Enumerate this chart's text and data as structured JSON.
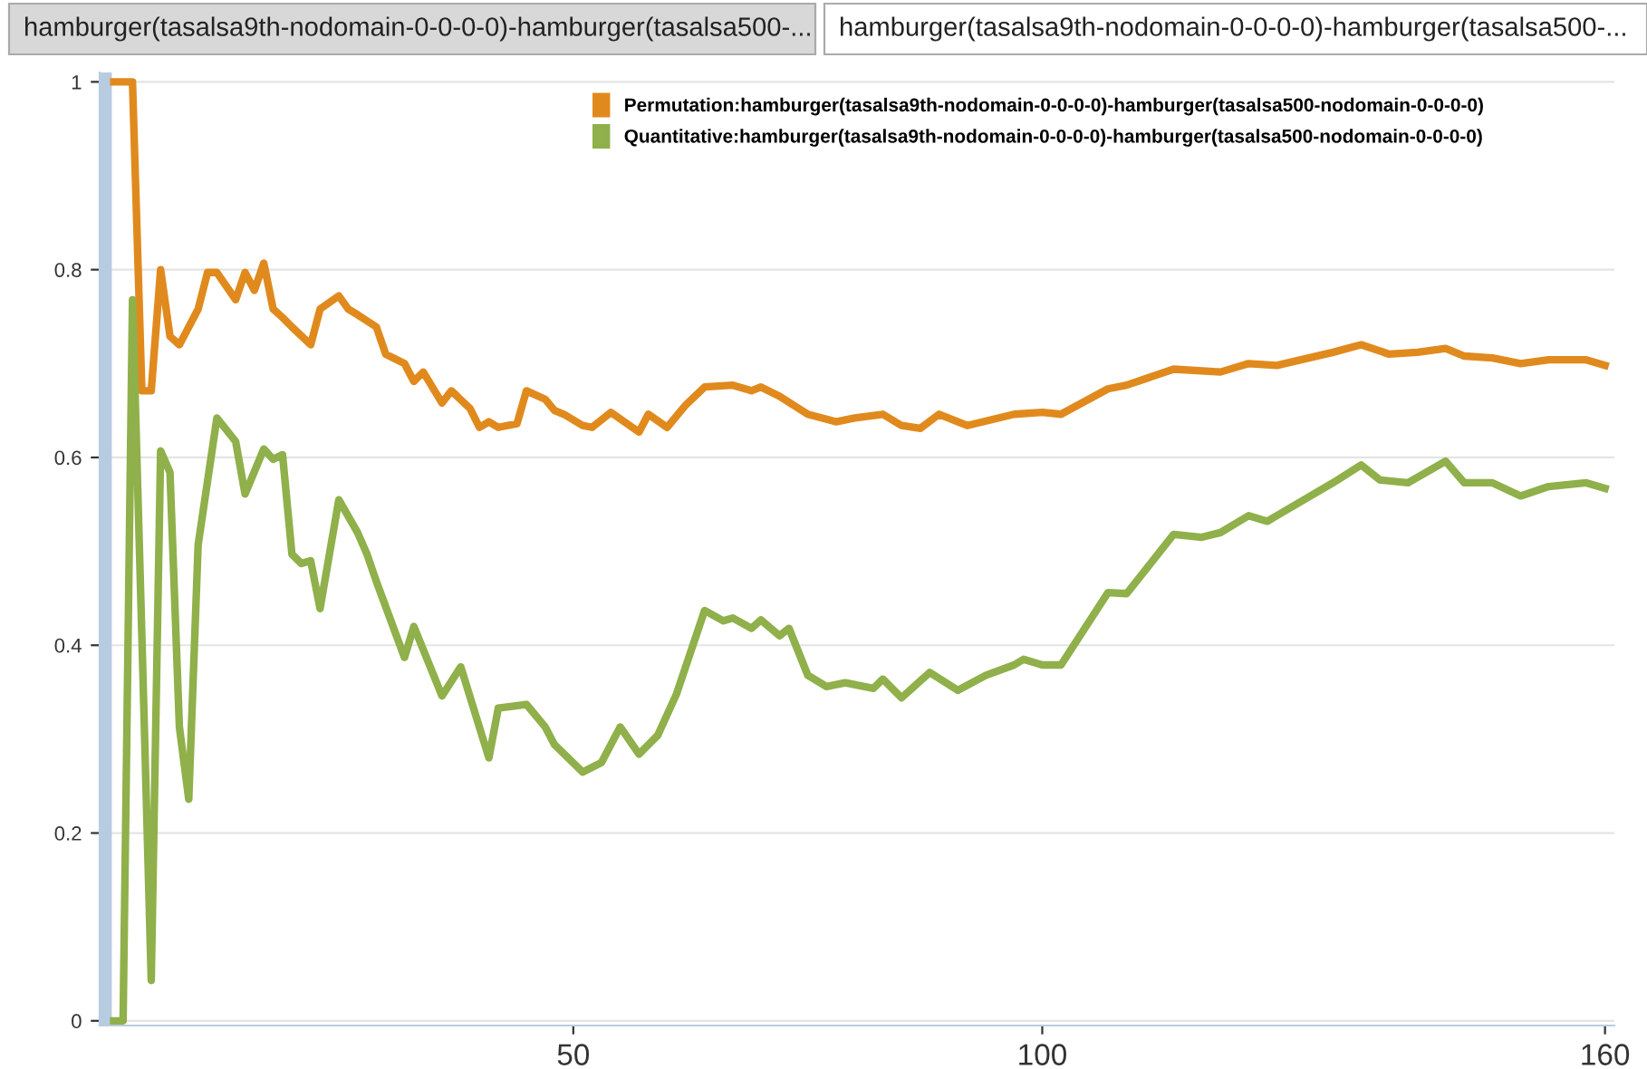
{
  "chart_data": {
    "type": "line",
    "annotations": [
      "hamburger(tasalsa9th-nodomain-0-0-0-0)-hamburger(tasalsa500-...",
      "hamburger(tasalsa9th-nodomain-0-0-0-0)-hamburger(tasalsa500-..."
    ],
    "series": [
      {
        "name": "Permutation:hamburger(tasalsa9th-nodomain-0-0-0-0)-hamburger(tasalsa500-nodomain-0-0-0-0)",
        "color": "#e08a1e",
        "x": [
          1,
          3,
          4,
          5,
          6,
          7,
          8,
          10,
          11,
          12,
          14,
          15,
          16,
          17,
          18,
          19,
          20,
          22,
          23,
          25,
          26,
          27,
          29,
          30,
          32,
          33,
          34,
          36,
          37,
          39,
          40,
          41,
          42,
          44,
          45,
          47,
          48,
          49,
          51,
          52,
          54,
          57,
          58,
          60,
          62,
          64,
          67,
          69,
          70,
          72,
          75,
          78,
          80,
          83,
          85,
          87,
          89,
          92,
          97,
          100,
          102,
          107,
          109,
          114,
          119,
          122,
          125,
          131,
          134,
          137,
          140,
          143,
          145,
          148,
          151,
          154,
          158,
          160
        ],
        "values": [
          1.0,
          1.0,
          0.671,
          0.671,
          0.8,
          0.729,
          0.72,
          0.758,
          0.797,
          0.797,
          0.768,
          0.797,
          0.778,
          0.807,
          0.758,
          0.749,
          0.739,
          0.72,
          0.758,
          0.772,
          0.758,
          0.752,
          0.739,
          0.71,
          0.7,
          0.681,
          0.691,
          0.658,
          0.671,
          0.652,
          0.632,
          0.638,
          0.632,
          0.636,
          0.671,
          0.662,
          0.65,
          0.646,
          0.634,
          0.632,
          0.648,
          0.627,
          0.646,
          0.632,
          0.656,
          0.675,
          0.677,
          0.671,
          0.675,
          0.665,
          0.646,
          0.638,
          0.642,
          0.646,
          0.634,
          0.631,
          0.646,
          0.634,
          0.646,
          0.648,
          0.646,
          0.673,
          0.677,
          0.694,
          0.691,
          0.7,
          0.698,
          0.712,
          0.72,
          0.71,
          0.712,
          0.716,
          0.708,
          0.706,
          0.7,
          0.704,
          0.704,
          0.698
        ]
      },
      {
        "name": "Quantitative:hamburger(tasalsa9th-nodomain-0-0-0-0)-hamburger(tasalsa500-nodomain-0-0-0-0)",
        "color": "#8fb04a",
        "x": [
          1,
          2,
          3,
          4,
          5,
          6,
          7,
          8,
          9,
          10,
          12,
          14,
          15,
          17,
          18,
          19,
          20,
          21,
          22,
          23,
          25,
          27,
          28,
          29,
          32,
          33,
          36,
          38,
          41,
          42,
          45,
          47,
          48,
          51,
          53,
          55,
          57,
          59,
          61,
          64,
          66,
          67,
          69,
          70,
          72,
          73,
          75,
          77,
          79,
          82,
          83,
          85,
          88,
          91,
          94,
          97,
          98,
          100,
          102,
          107,
          109,
          114,
          117,
          119,
          122,
          124,
          125,
          131,
          134,
          136,
          139,
          143,
          145,
          148,
          151,
          154,
          158,
          160
        ],
        "values": [
          0,
          0,
          0.768,
          0.41,
          0.043,
          0.607,
          0.584,
          0.313,
          0.236,
          0.507,
          0.642,
          0.617,
          0.561,
          0.609,
          0.598,
          0.603,
          0.497,
          0.487,
          0.49,
          0.439,
          0.555,
          0.52,
          0.497,
          0.468,
          0.387,
          0.42,
          0.346,
          0.377,
          0.28,
          0.333,
          0.337,
          0.313,
          0.294,
          0.265,
          0.275,
          0.313,
          0.284,
          0.304,
          0.348,
          0.437,
          0.426,
          0.429,
          0.418,
          0.427,
          0.41,
          0.418,
          0.368,
          0.356,
          0.36,
          0.354,
          0.364,
          0.344,
          0.371,
          0.352,
          0.368,
          0.379,
          0.385,
          0.379,
          0.379,
          0.456,
          0.455,
          0.518,
          0.515,
          0.52,
          0.538,
          0.532,
          0.538,
          0.573,
          0.592,
          0.576,
          0.573,
          0.596,
          0.573,
          0.573,
          0.559,
          0.569,
          0.573,
          0.567
        ]
      }
    ],
    "bands": [
      {
        "axis": "x",
        "from": -0.5,
        "to": 0.8,
        "color": "#b8cce0"
      }
    ],
    "xlim": [
      -0.5,
      161
    ],
    "xticks": [
      50,
      100,
      160
    ],
    "ylim": [
      -0.005,
      1.01
    ],
    "yticks": [
      0,
      0.2,
      0.4,
      0.6,
      0.8,
      1
    ],
    "grid": "y",
    "legend": "top",
    "marker": "none",
    "line_style": "solid"
  }
}
